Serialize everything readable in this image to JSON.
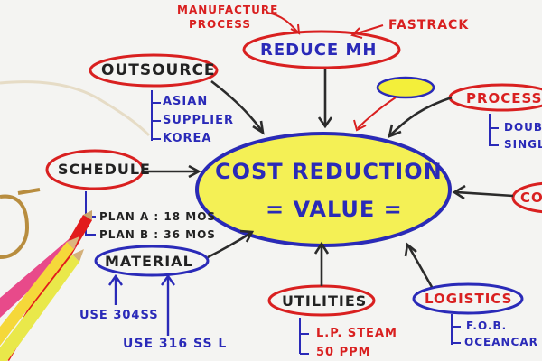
{
  "center": {
    "line1": "COST REDUCTION",
    "line2": "= VALUE ="
  },
  "top": {
    "manufacture_process_1": "MANUFACTURE",
    "manufacture_process_2": "PROCESS",
    "fastrack": "FASTRACK",
    "reduce_mh": "REDUCE MH"
  },
  "outsource": {
    "title": "OUTSOURCE",
    "items": [
      "ASIAN",
      "SUPPLIER",
      "KOREA"
    ]
  },
  "schedule": {
    "title": "SCHEDULE",
    "items": [
      "PLAN A : 18 MOS",
      "PLAN B : 36 MOS"
    ]
  },
  "material": {
    "title": "MATERIAL",
    "items": [
      "USE 304SS",
      "USE 316 SS L"
    ]
  },
  "utilities": {
    "title": "UTILITIES",
    "items": [
      "L.P. STEAM",
      "50 PPM"
    ]
  },
  "logistics": {
    "title": "LOGISTICS",
    "items": [
      "F.O.B.",
      "OCEANCAR"
    ]
  },
  "process": {
    "title": "PROCESS",
    "items": [
      "DOUBL",
      "SINGL"
    ]
  },
  "right_edge": {
    "title": "CO"
  },
  "colors": {
    "blue_ink": "#2a2ab8",
    "red_ink": "#d92020",
    "highlighter": "#f3ef3a",
    "paper": "#f4f4f2"
  }
}
